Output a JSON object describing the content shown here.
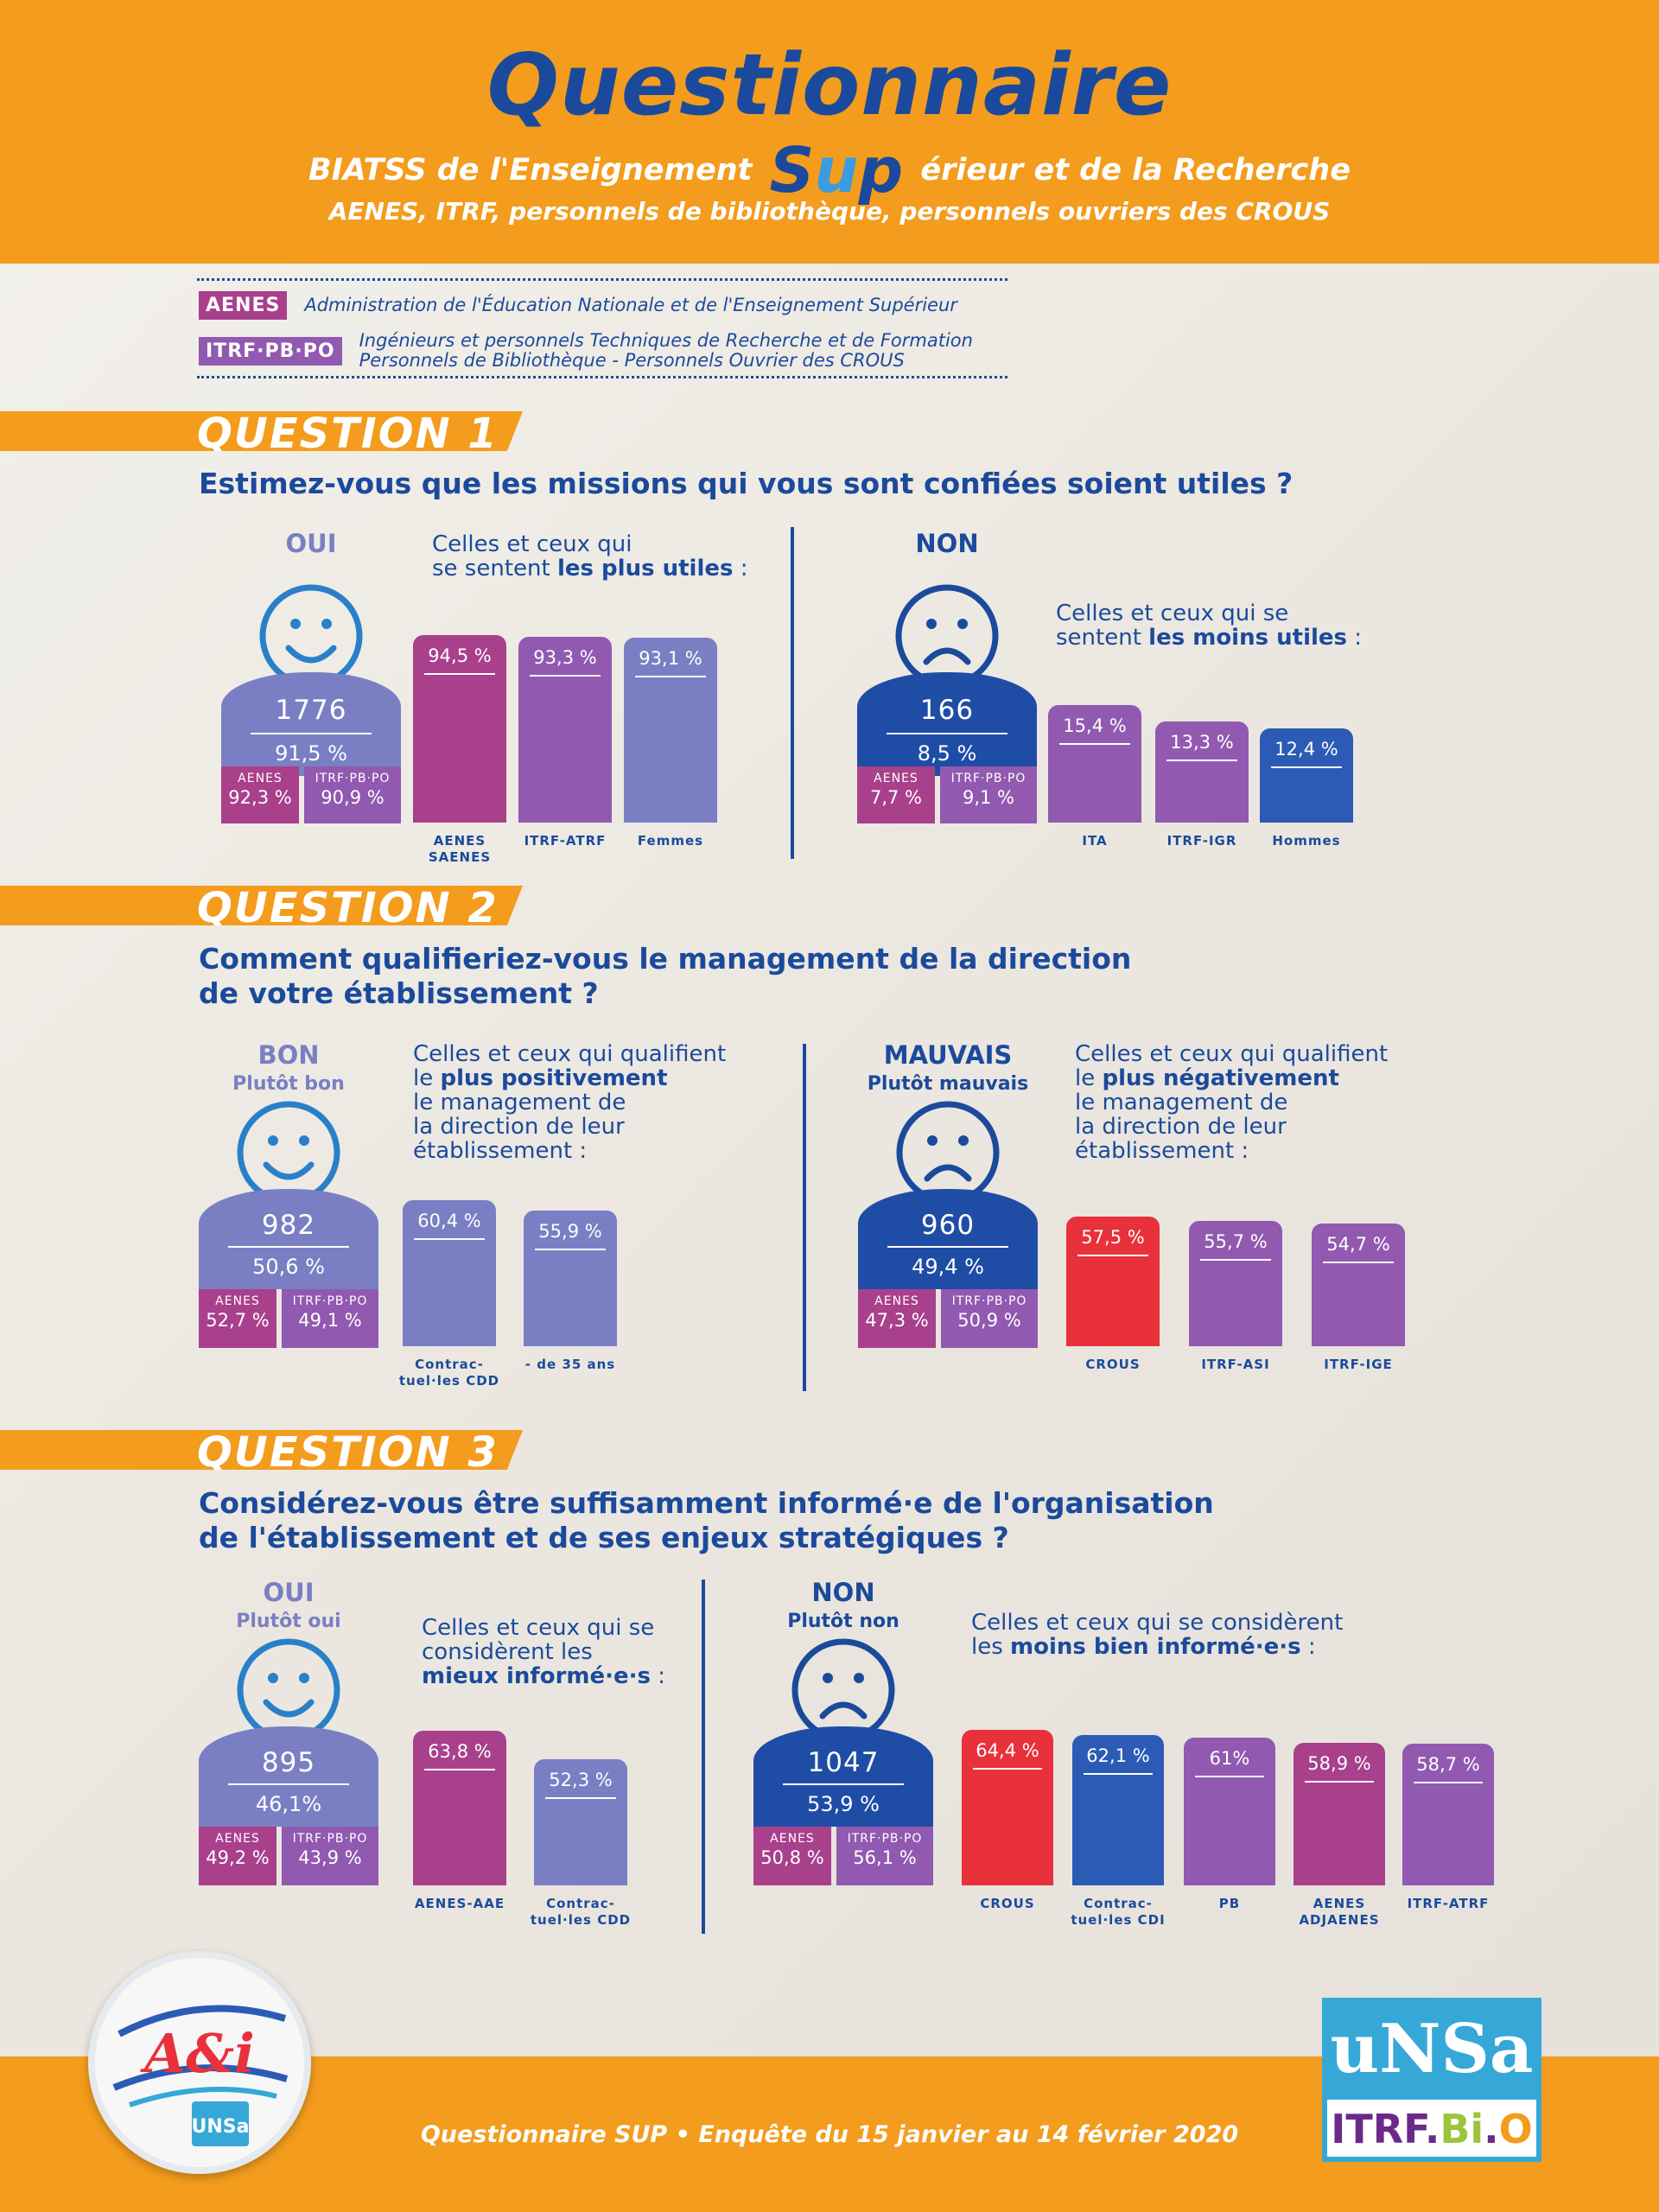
{
  "header": {
    "title": "Questionnaire",
    "subtitle_left": "BIATSS de l'Enseignement",
    "subtitle_sup_s": "S",
    "subtitle_sup_u": "u",
    "subtitle_sup_p": "p",
    "subtitle_right": "érieur et de la Recherche",
    "corps": "AENES, ITRF, personnels de bibliothèque, personnels ouvriers des CROUS"
  },
  "legend": {
    "aenes_tag": "AENES",
    "aenes_desc": "Administration de l'Éducation Nationale et de l'Enseignement Supérieur",
    "itrf_tag": "ITRF·PB·PO",
    "itrf_desc_1": "Ingénieurs et personnels Techniques de Recherche et de Formation",
    "itrf_desc_2": "Personnels de Bibliothèque - Personnels Ouvrier des CROUS"
  },
  "colors": {
    "orange": "#f39c1d",
    "navy": "#1b4a9c",
    "lavender": "#7a7fc4",
    "magenta": "#a8408c",
    "purple": "#9159b0",
    "red": "#e8313a",
    "blue": "#2b5bb5"
  },
  "q1": {
    "banner": "QUESTION 1",
    "question": "Estimez-vous que les missions qui vous sont confiées soient utiles ?",
    "yes": {
      "label": "OUI",
      "count": "1776",
      "pct": "91,5 %",
      "aenes_label": "AENES",
      "aenes_val": "92,3 %",
      "itrf_label": "ITRF·PB·PO",
      "itrf_val": "90,9 %",
      "intro_1": "Celles et ceux qui",
      "intro_2": "se sentent ",
      "intro_bold": "les plus utiles",
      "intro_end": " :"
    },
    "no": {
      "label": "NON",
      "count": "166",
      "pct": "8,5 %",
      "aenes_label": "AENES",
      "aenes_val": "7,7 %",
      "itrf_label": "ITRF·PB·PO",
      "itrf_val": "9,1 %",
      "intro_1": "Celles et ceux qui se",
      "intro_2": "sentent ",
      "intro_bold": "les moins utiles",
      "intro_end": " :"
    }
  },
  "q2": {
    "banner": "QUESTION 2",
    "question_1": "Comment qualifieriez-vous le management de la direction",
    "question_2": "de votre établissement ?",
    "good": {
      "label": "BON",
      "sublabel": "Plutôt bon",
      "count": "982",
      "pct": "50,6 %",
      "aenes_label": "AENES",
      "aenes_val": "52,7 %",
      "itrf_label": "ITRF·PB·PO",
      "itrf_val": "49,1 %",
      "intro_1": "Celles et ceux qui qualifient",
      "intro_2": "le ",
      "intro_bold": "plus positivement",
      "intro_3": "le management de",
      "intro_4": "la direction de leur",
      "intro_5": "établissement :"
    },
    "bad": {
      "label": "MAUVAIS",
      "sublabel": "Plutôt mauvais",
      "count": "960",
      "pct": "49,4 %",
      "aenes_label": "AENES",
      "aenes_val": "47,3 %",
      "itrf_label": "ITRF·PB·PO",
      "itrf_val": "50,9 %",
      "intro_1": "Celles et ceux qui qualifient",
      "intro_2": "le ",
      "intro_bold": "plus négativement",
      "intro_3": "le management de",
      "intro_4": "la direction de leur",
      "intro_5": "établissement :"
    }
  },
  "q3": {
    "banner": "QUESTION 3",
    "question_1": "Considérez-vous être suffisamment informé·e de l'organisation",
    "question_2": "de l'établissement et de ses enjeux stratégiques ?",
    "yes": {
      "label": "OUI",
      "sublabel": "Plutôt oui",
      "count": "895",
      "pct": "46,1%",
      "aenes_label": "AENES",
      "aenes_val": "49,2 %",
      "itrf_label": "ITRF·PB·PO",
      "itrf_val": "43,9 %",
      "intro_1": "Celles et ceux qui se",
      "intro_2": "considèrent les",
      "intro_bold": "mieux informé·e·s",
      "intro_end": " :"
    },
    "no": {
      "label": "NON",
      "sublabel": "Plutôt non",
      "count": "1047",
      "pct": "53,9 %",
      "aenes_label": "AENES",
      "aenes_val": "50,8 %",
      "itrf_label": "ITRF·PB·PO",
      "itrf_val": "56,1 %",
      "intro_1": "Celles et ceux qui se considèrent",
      "intro_2": "les ",
      "intro_bold": "moins bien informé·e·s",
      "intro_end": " :"
    }
  },
  "chart_data": [
    {
      "type": "bar",
      "categories": [
        "AENES SAENES",
        "ITRF-ATRF",
        "Femmes"
      ],
      "values": [
        94.5,
        93.3,
        93.1
      ],
      "labels": [
        "94,5 %",
        "93,3 %",
        "93,1 %"
      ],
      "colors": [
        "#a8408c",
        "#9159b0",
        "#7a7fc4"
      ]
    },
    {
      "type": "bar",
      "categories": [
        "ITA",
        "ITRF-IGR",
        "Hommes"
      ],
      "values": [
        15.4,
        13.3,
        12.4
      ],
      "labels": [
        "15,4 %",
        "13,3 %",
        "12,4 %"
      ],
      "colors": [
        "#9159b0",
        "#9159b0",
        "#2b5bb5"
      ]
    },
    {
      "type": "bar",
      "categories": [
        "Contrac-tuel·les CDD",
        "- de 35 ans"
      ],
      "values": [
        60.4,
        55.9
      ],
      "labels": [
        "60,4 %",
        "55,9 %"
      ],
      "colors": [
        "#7a7fc4",
        "#7a7fc4"
      ]
    },
    {
      "type": "bar",
      "categories": [
        "CROUS",
        "ITRF-ASI",
        "ITRF-IGE"
      ],
      "values": [
        57.5,
        55.7,
        54.7
      ],
      "labels": [
        "57,5 %",
        "55,7 %",
        "54,7 %"
      ],
      "colors": [
        "#e8313a",
        "#9159b0",
        "#9159b0"
      ]
    },
    {
      "type": "bar",
      "categories": [
        "AENES-AAE",
        "Contrac-tuel·les CDD"
      ],
      "values": [
        63.8,
        52.3
      ],
      "labels": [
        "63,8 %",
        "52,3 %"
      ],
      "colors": [
        "#a8408c",
        "#7a7fc4"
      ]
    },
    {
      "type": "bar",
      "categories": [
        "CROUS",
        "Contrac-tuel·les CDI",
        "PB",
        "AENES ADJAENES",
        "ITRF-ATRF"
      ],
      "values": [
        64.4,
        62.1,
        61,
        58.9,
        58.7
      ],
      "labels": [
        "64,4 %",
        "62,1 %",
        "61%",
        "58,9 %",
        "58,7 %"
      ],
      "colors": [
        "#e8313a",
        "#2b5bb5",
        "#9159b0",
        "#a8408c",
        "#9159b0"
      ]
    }
  ],
  "footer": {
    "text": "Questionnaire SUP • Enquête du 15 janvier au 14 février 2020",
    "ai_logo_text": "A&i",
    "ai_sub_logo": "UNSa",
    "unsa_logo_top": "uNSa",
    "unsa_logo_itrf": "ITRF.",
    "unsa_logo_bi": "Bi",
    "unsa_logo_dot": ".",
    "unsa_logo_o": "O"
  }
}
